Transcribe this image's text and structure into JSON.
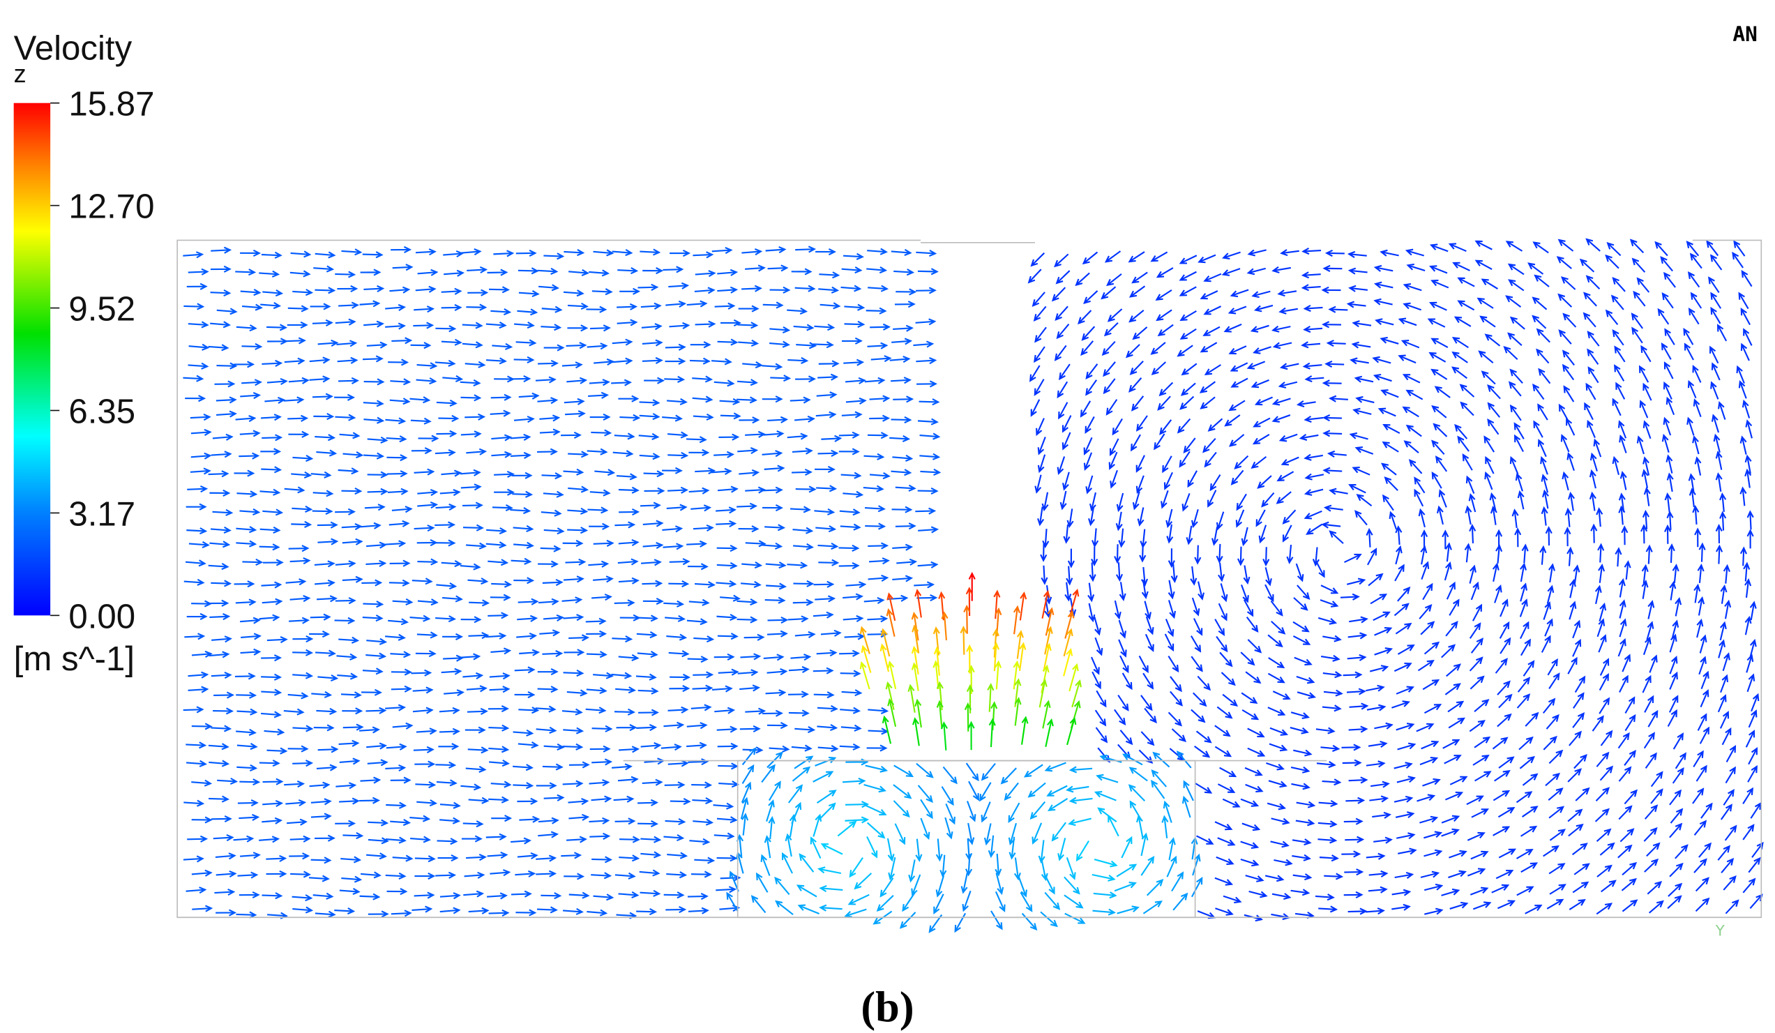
{
  "legend": {
    "title": "Velocity",
    "component": "z",
    "ticks": [
      "15.87",
      "12.70",
      "9.52",
      "6.35",
      "3.17",
      "0.00"
    ],
    "unit": "[m s^-1]"
  },
  "logo": "AN",
  "axis_label": "Y",
  "caption": "(b)"
}
